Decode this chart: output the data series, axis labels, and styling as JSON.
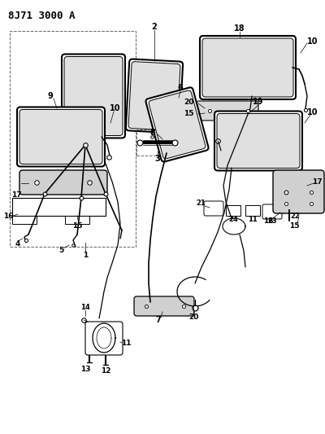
{
  "title": "8J71 3000 A",
  "bg": "#ffffff",
  "lc": "#000000"
}
